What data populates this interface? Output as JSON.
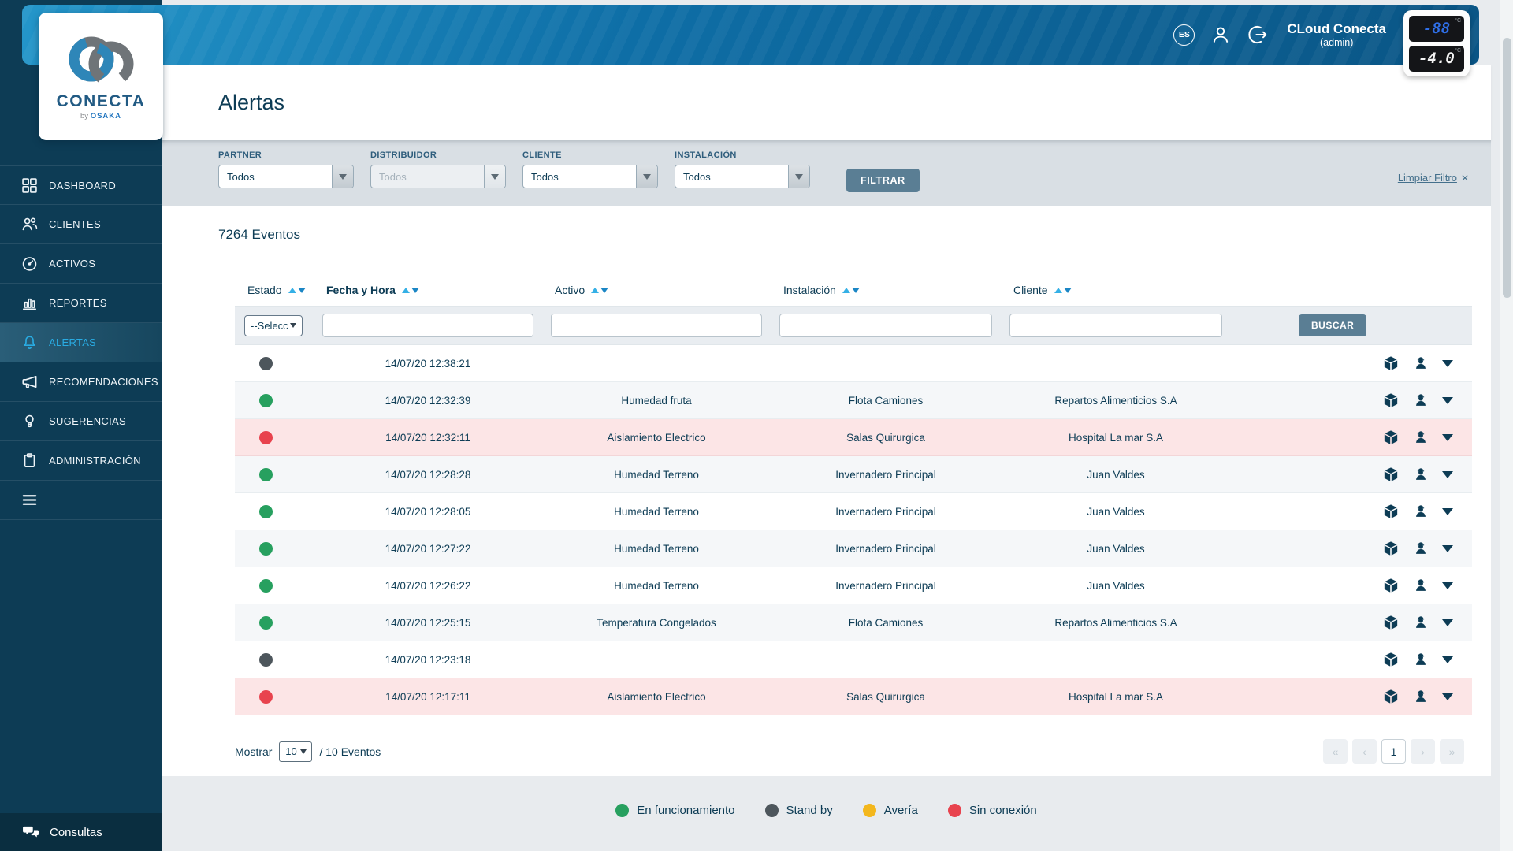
{
  "brand": {
    "name": "CONECTA",
    "byline_prefix": "by",
    "byline_brand": "OSAKA"
  },
  "topbar": {
    "lang_badge": "ES",
    "user_name": "CLoud Conecta",
    "user_role": "(admin)",
    "device_display": {
      "top_value": "-88",
      "bottom_value": "-4.0",
      "unit": "°C"
    }
  },
  "sidebar": {
    "items": [
      {
        "label": "DASHBOARD",
        "icon": "dashboard-icon",
        "active": false
      },
      {
        "label": "CLIENTES",
        "icon": "clients-icon",
        "active": false
      },
      {
        "label": "ACTIVOS",
        "icon": "assets-gauge-icon",
        "active": false
      },
      {
        "label": "REPORTES",
        "icon": "reports-chart-icon",
        "active": false
      },
      {
        "label": "ALERTAS",
        "icon": "alerts-bell-icon",
        "active": true
      },
      {
        "label": "RECOMENDACIONES",
        "icon": "recommendations-megaphone-icon",
        "active": false
      },
      {
        "label": "SUGERENCIAS",
        "icon": "suggestions-bulb-icon",
        "active": false
      },
      {
        "label": "ADMINISTRACIÓN",
        "icon": "admin-clipboard-icon",
        "active": false
      },
      {
        "label": "",
        "icon": "menu-icon",
        "active": false
      }
    ],
    "footer_label": "Consultas",
    "footer_icon": "chat-icon"
  },
  "page": {
    "title": "Alertas"
  },
  "filterbar": {
    "fields": [
      {
        "label": "PARTNER",
        "value": "Todos",
        "disabled": false
      },
      {
        "label": "DISTRIBUIDOR",
        "value": "Todos",
        "disabled": true
      },
      {
        "label": "CLIENTE",
        "value": "Todos",
        "disabled": false
      },
      {
        "label": "INSTALACIÓN",
        "value": "Todos",
        "disabled": false
      }
    ],
    "filter_button_label": "FILTRAR",
    "clear_filter_label": "Limpiar Filtro",
    "clear_filter_icon": "✕"
  },
  "events": {
    "count_label": "7264 Eventos",
    "table": {
      "columns": [
        "Estado",
        "Fecha y Hora",
        "Activo",
        "Instalación",
        "Cliente"
      ],
      "sorted_column": "Fecha y Hora",
      "search_row": {
        "status_select_value": "--Selecc",
        "search_button_label": "BUSCAR"
      },
      "row_actions": [
        "asset-cube-icon",
        "technician-icon",
        "expand-caret-icon"
      ],
      "rows": [
        {
          "status": "standby",
          "datetime": "14/07/20 12:38:21",
          "activo": "",
          "instalacion": "",
          "cliente": "",
          "highlight": false
        },
        {
          "status": "running",
          "datetime": "14/07/20 12:32:39",
          "activo": "Humedad fruta",
          "instalacion": "Flota Camiones",
          "cliente": "Repartos Alimenticios S.A",
          "highlight": false
        },
        {
          "status": "offline",
          "datetime": "14/07/20 12:32:11",
          "activo": "Aislamiento Electrico",
          "instalacion": "Salas Quirurgica",
          "cliente": "Hospital La mar S.A",
          "highlight": true
        },
        {
          "status": "running",
          "datetime": "14/07/20 12:28:28",
          "activo": "Humedad Terreno",
          "instalacion": "Invernadero Principal",
          "cliente": "Juan Valdes",
          "highlight": false
        },
        {
          "status": "running",
          "datetime": "14/07/20 12:28:05",
          "activo": "Humedad Terreno",
          "instalacion": "Invernadero Principal",
          "cliente": "Juan Valdes",
          "highlight": false
        },
        {
          "status": "running",
          "datetime": "14/07/20 12:27:22",
          "activo": "Humedad Terreno",
          "instalacion": "Invernadero Principal",
          "cliente": "Juan Valdes",
          "highlight": false
        },
        {
          "status": "running",
          "datetime": "14/07/20 12:26:22",
          "activo": "Humedad Terreno",
          "instalacion": "Invernadero Principal",
          "cliente": "Juan Valdes",
          "highlight": false
        },
        {
          "status": "running",
          "datetime": "14/07/20 12:25:15",
          "activo": "Temperatura Congelados",
          "instalacion": "Flota Camiones",
          "cliente": "Repartos Alimenticios S.A",
          "highlight": false
        },
        {
          "status": "standby",
          "datetime": "14/07/20 12:23:18",
          "activo": "",
          "instalacion": "",
          "cliente": "",
          "highlight": false
        },
        {
          "status": "offline",
          "datetime": "14/07/20 12:17:11",
          "activo": "Aislamiento Electrico",
          "instalacion": "Salas Quirurgica",
          "cliente": "Hospital La mar S.A",
          "highlight": true
        }
      ]
    },
    "pagination": {
      "show_label": "Mostrar",
      "page_size": "10",
      "suffix_label": "/ 10 Eventos",
      "buttons": [
        {
          "glyph": "«",
          "name": "first-page-button",
          "active": false
        },
        {
          "glyph": "‹",
          "name": "prev-page-button",
          "active": false
        },
        {
          "glyph": "1",
          "name": "page-button-1",
          "active": true
        },
        {
          "glyph": "›",
          "name": "next-page-button",
          "active": false
        },
        {
          "glyph": "»",
          "name": "last-page-button",
          "active": false
        }
      ]
    }
  },
  "legend": [
    {
      "label": "En funcionamiento",
      "status": "running",
      "color": "#27a05f"
    },
    {
      "label": "Stand by",
      "status": "standby",
      "color": "#4d565c"
    },
    {
      "label": "Avería",
      "status": "fault",
      "color": "#f3b71d"
    },
    {
      "label": "Sin conexión",
      "status": "offline",
      "color": "#e8434e"
    }
  ],
  "status_colors": {
    "running": "#27a05f",
    "standby": "#4d565c",
    "fault": "#f3b71d",
    "offline": "#e8434e"
  }
}
